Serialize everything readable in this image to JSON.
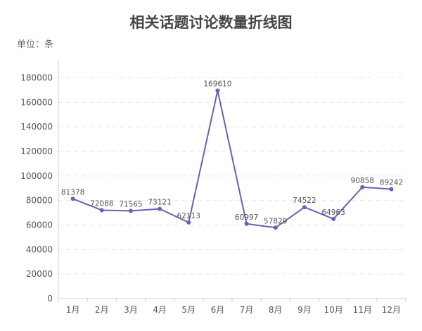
{
  "header": {
    "title": "相关话题讨论数量折线图",
    "unit": "单位：条"
  },
  "chart_data": {
    "type": "line",
    "title": "相关话题讨论数量折线图",
    "unit_label": "单位：条",
    "categories": [
      "1月",
      "2月",
      "3月",
      "4月",
      "5月",
      "6月",
      "7月",
      "8月",
      "9月",
      "10月",
      "11月",
      "12月"
    ],
    "series": [
      {
        "values": [
          81378,
          72088,
          71565,
          73121,
          62113,
          169610,
          60997,
          57829,
          74522,
          64963,
          90858,
          89242
        ]
      }
    ],
    "y_ticks": [
      0,
      20000,
      40000,
      60000,
      80000,
      100000,
      120000,
      140000,
      160000,
      180000
    ],
    "ylim": [
      0,
      180000
    ],
    "grid": true,
    "line_color": "#6c5fb5",
    "marker_color": "#6c5fb5"
  }
}
